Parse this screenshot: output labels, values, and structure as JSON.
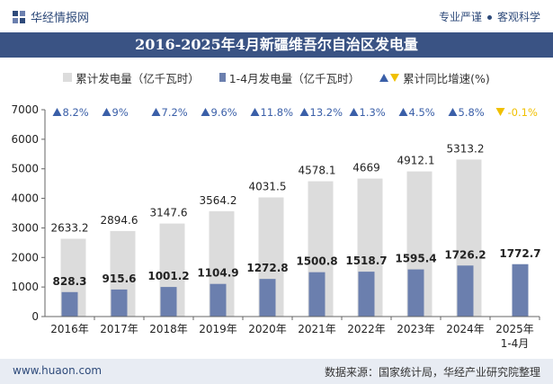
{
  "header": {
    "brand": "华经情报网",
    "slogan_left": "专业严谨",
    "slogan_right": "客观科学"
  },
  "footer": {
    "site": "www.huaon.com",
    "source": "数据来源：国家统计局，华经产业研究院整理"
  },
  "colors": {
    "total_bar": "#dcdcdc",
    "ytd_bar": "#6b7fae",
    "up_arrow": "#3a5fa8",
    "down_arrow": "#f0c000",
    "title_bg": "#3a5384"
  },
  "chart_data": {
    "type": "bar",
    "title": "2016-2025年4月新疆维吾尔自治区发电量",
    "categories": [
      "2016年",
      "2017年",
      "2018年",
      "2019年",
      "2020年",
      "2021年",
      "2022年",
      "2023年",
      "2024年",
      "2025年\n1-4月"
    ],
    "series": [
      {
        "name": "累计发电量（亿千瓦时）",
        "values": [
          2633.2,
          2894.6,
          3147.6,
          3564.2,
          4031.5,
          4578.1,
          4669,
          4912.1,
          5313.2,
          null
        ]
      },
      {
        "name": "1-4月发电量（亿千瓦时）",
        "values": [
          828.3,
          915.6,
          1001.2,
          1104.9,
          1272.8,
          1500.8,
          1518.7,
          1595.4,
          1726.2,
          1772.7
        ]
      }
    ],
    "growth": {
      "name": "累计同比增速(%)",
      "values": [
        8.2,
        9,
        7.2,
        9.6,
        11.8,
        13.2,
        1.3,
        4.5,
        5.8,
        -0.1
      ],
      "labels": [
        "8.2%",
        "9%",
        "7.2%",
        "9.6%",
        "11.8%",
        "13.2%",
        "1.3%",
        "4.5%",
        "5.8%",
        "-0.1%"
      ]
    },
    "ylim": [
      0,
      7000
    ],
    "yticks": [
      0,
      1000,
      2000,
      3000,
      4000,
      5000,
      6000,
      7000
    ],
    "grid": false,
    "legend_position": "top"
  }
}
